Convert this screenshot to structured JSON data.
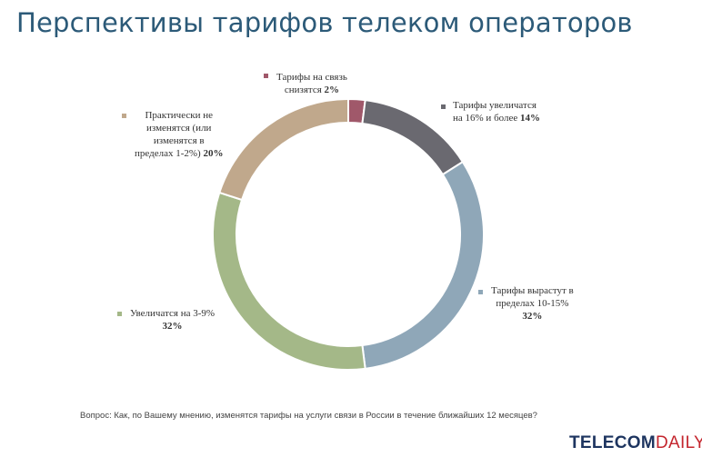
{
  "title": "Перспективы тарифов телеком операторов",
  "question": "Вопрос: Как, по Вашему мнению, изменятся тарифы на услуги связи в России в течение ближайших 12 месяцев?",
  "logo": {
    "part1": "TELECOM",
    "part2": "DAILY"
  },
  "chart_data": {
    "type": "pie",
    "subtype": "donut",
    "title": "Перспективы тарифов телеком операторов",
    "slices": [
      {
        "label": "Тарифы на связь снизятся",
        "value": 2,
        "value_label": "2%",
        "color": "#a0586a"
      },
      {
        "label": "Тарифы увеличатся на 16% и более",
        "value": 14,
        "value_label": "14%",
        "color": "#6a6970"
      },
      {
        "label": "Тарифы вырастут в пределах 10-15%",
        "value": 32,
        "value_label": "32%",
        "color": "#8fa7b8"
      },
      {
        "label": "Увеличатся на 3-9%",
        "value": 32,
        "value_label": "32%",
        "color": "#a4b888"
      },
      {
        "label": "Практически не изменятся (или изменятся в пределах 1-2%)",
        "value": 20,
        "value_label": "20%",
        "color": "#c0a88c"
      }
    ]
  },
  "labels": {
    "decrease": {
      "line1": "Тарифы на связь",
      "line2": "снизятся",
      "pct": "2%"
    },
    "up16": {
      "line1": "Тарифы увеличатся",
      "line2": "на 16% и более",
      "pct": "14%"
    },
    "up10": {
      "line1": "Тарифы вырастут в",
      "line2": "пределах 10-15%",
      "pct": "32%"
    },
    "up3": {
      "line1": "Увеличатся на 3-9%",
      "pct": "32%"
    },
    "same": {
      "line1": "Практически не",
      "line2": "изменятся (или",
      "line3": "изменятся в",
      "line4": "пределах 1-2%)",
      "pct": "20%"
    }
  }
}
